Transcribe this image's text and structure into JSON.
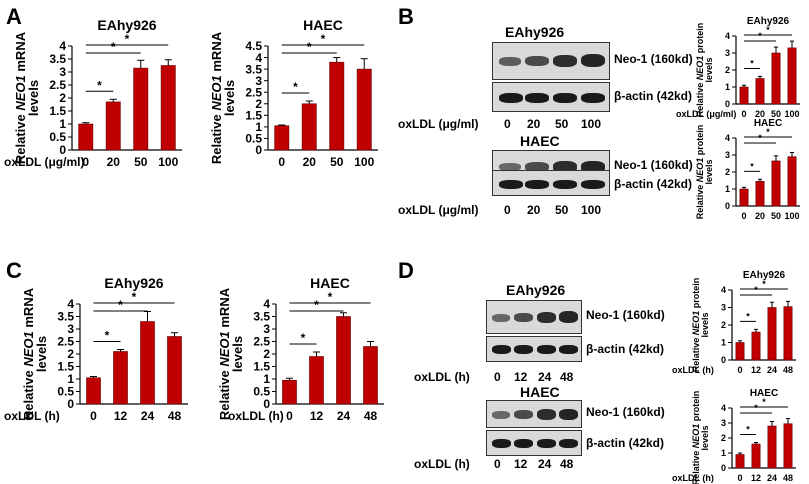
{
  "panels": {
    "A": "A",
    "B": "B",
    "C": "C",
    "D": "D"
  },
  "colors": {
    "bar": "#c00000",
    "axis": "#000000"
  },
  "blots": {
    "B": {
      "top_title": "EAhy926",
      "bottom_title": "HAEC",
      "neo_label": "Neo-1 (160kd)",
      "actin_label": "β-actin (42kd)",
      "x_title": "oxLDL (μg/ml)",
      "lanes": [
        "0",
        "20",
        "50",
        "100"
      ]
    },
    "D": {
      "top_title": "EAhy926",
      "bottom_title": "HAEC",
      "neo_label": "Neo-1 (160kd)",
      "actin_label": "β-actin (42kd)",
      "x_title": "oxLDL (h)",
      "lanes": [
        "0",
        "12",
        "24",
        "48"
      ]
    }
  },
  "chart_data": [
    {
      "id": "A1",
      "type": "bar",
      "title": "EAhy926",
      "ylabel": "Relative NEO1 mRNA levels",
      "xlabel": "oxLDL (μg/ml)",
      "categories": [
        "0",
        "20",
        "50",
        "100"
      ],
      "values": [
        1.0,
        1.85,
        3.15,
        3.25
      ],
      "errors": [
        0.05,
        0.1,
        0.3,
        0.22
      ],
      "ylim": [
        0,
        4
      ],
      "yticks": [
        "0",
        "0.5",
        "1",
        "1.5",
        "2",
        "2.5",
        "3",
        "3.5",
        "4"
      ],
      "sig": [
        [
          "0",
          "20"
        ],
        [
          "0",
          "50"
        ],
        [
          "0",
          "100"
        ]
      ],
      "sig_label": "*"
    },
    {
      "id": "A2",
      "type": "bar",
      "title": "HAEC",
      "ylabel": "Relative NEO1 mRNA levels",
      "xlabel": "",
      "categories": [
        "0",
        "20",
        "50",
        "100"
      ],
      "values": [
        1.05,
        2.0,
        3.8,
        3.5
      ],
      "errors": [
        0.03,
        0.12,
        0.2,
        0.45
      ],
      "ylim": [
        0,
        4.5
      ],
      "yticks": [
        "0",
        "0.5",
        "1",
        "1.5",
        "2",
        "2.5",
        "3",
        "3.5",
        "4",
        "4.5"
      ],
      "sig": [
        [
          "0",
          "20"
        ],
        [
          "0",
          "50"
        ],
        [
          "0",
          "100"
        ]
      ],
      "sig_label": "*"
    },
    {
      "id": "B1",
      "type": "bar",
      "title": "EAhy926",
      "ylabel": "Relative NEO1 protein levels",
      "xlabel": "oxLDL (μg/ml)",
      "categories": [
        "0",
        "20",
        "50",
        "100"
      ],
      "values": [
        1.0,
        1.5,
        3.0,
        3.3
      ],
      "errors": [
        0.1,
        0.12,
        0.35,
        0.4
      ],
      "ylim": [
        0,
        4
      ],
      "yticks": [
        "0",
        "1",
        "2",
        "3",
        "4"
      ],
      "sig": [
        [
          "0",
          "20"
        ],
        [
          "0",
          "50"
        ],
        [
          "0",
          "100"
        ]
      ],
      "sig_label": "*"
    },
    {
      "id": "B2",
      "type": "bar",
      "title": "HAEC",
      "ylabel": "Relative NEO1 protein levels",
      "xlabel": "",
      "categories": [
        "0",
        "20",
        "50",
        "100"
      ],
      "values": [
        1.0,
        1.45,
        2.65,
        2.9
      ],
      "errors": [
        0.1,
        0.12,
        0.3,
        0.25
      ],
      "ylim": [
        0,
        4
      ],
      "yticks": [
        "0",
        "1",
        "2",
        "3",
        "4"
      ],
      "sig": [
        [
          "0",
          "20"
        ],
        [
          "0",
          "50"
        ],
        [
          "0",
          "100"
        ]
      ],
      "sig_label": "*"
    },
    {
      "id": "C1",
      "type": "bar",
      "title": "EAhy926",
      "ylabel": "Relative NEO1 mRNA levels",
      "xlabel": "oxLDL (h)",
      "categories": [
        "0",
        "12",
        "24",
        "48"
      ],
      "values": [
        1.05,
        2.1,
        3.3,
        2.7
      ],
      "errors": [
        0.05,
        0.08,
        0.4,
        0.15
      ],
      "ylim": [
        0,
        4
      ],
      "yticks": [
        "0",
        "0.5",
        "1",
        "1.5",
        "2",
        "2.5",
        "3",
        "3.5",
        "4"
      ],
      "sig": [
        [
          "0",
          "12"
        ],
        [
          "0",
          "24"
        ],
        [
          "0",
          "48"
        ]
      ],
      "sig_label": "*"
    },
    {
      "id": "C2",
      "type": "bar",
      "title": "HAEC",
      "ylabel": "Relative NEO1 mRNA levels",
      "xlabel": "oxLDL (h)",
      "categories": [
        "0",
        "12",
        "24",
        "48"
      ],
      "values": [
        0.95,
        1.9,
        3.5,
        2.3
      ],
      "errors": [
        0.08,
        0.18,
        0.15,
        0.2
      ],
      "ylim": [
        0,
        4
      ],
      "yticks": [
        "0",
        "0.5",
        "1",
        "1.5",
        "2",
        "2.5",
        "3",
        "3.5",
        "4"
      ],
      "sig": [
        [
          "0",
          "12"
        ],
        [
          "0",
          "24"
        ],
        [
          "0",
          "48"
        ]
      ],
      "sig_label": "*"
    },
    {
      "id": "D1",
      "type": "bar",
      "title": "EAhy926",
      "ylabel": "Relative NEO1 protein levels",
      "xlabel": "oxLDL (h)",
      "categories": [
        "0",
        "12",
        "24",
        "48"
      ],
      "values": [
        1.0,
        1.6,
        3.0,
        3.05
      ],
      "errors": [
        0.1,
        0.15,
        0.3,
        0.3
      ],
      "ylim": [
        0,
        4
      ],
      "yticks": [
        "0",
        "1",
        "2",
        "3",
        "4"
      ],
      "sig": [
        [
          "0",
          "12"
        ],
        [
          "0",
          "24"
        ],
        [
          "0",
          "48"
        ]
      ],
      "sig_label": "*"
    },
    {
      "id": "D2",
      "type": "bar",
      "title": "HAEC",
      "ylabel": "Relative NEO1 protein levels",
      "xlabel": "oxLDL (h)",
      "categories": [
        "0",
        "12",
        "24",
        "48"
      ],
      "values": [
        0.9,
        1.6,
        2.8,
        2.95
      ],
      "errors": [
        0.1,
        0.1,
        0.3,
        0.35
      ],
      "ylim": [
        0,
        4
      ],
      "yticks": [
        "0",
        "1",
        "2",
        "3",
        "4"
      ],
      "sig": [
        [
          "0",
          "12"
        ],
        [
          "0",
          "24"
        ],
        [
          "0",
          "48"
        ]
      ],
      "sig_label": "*"
    }
  ]
}
